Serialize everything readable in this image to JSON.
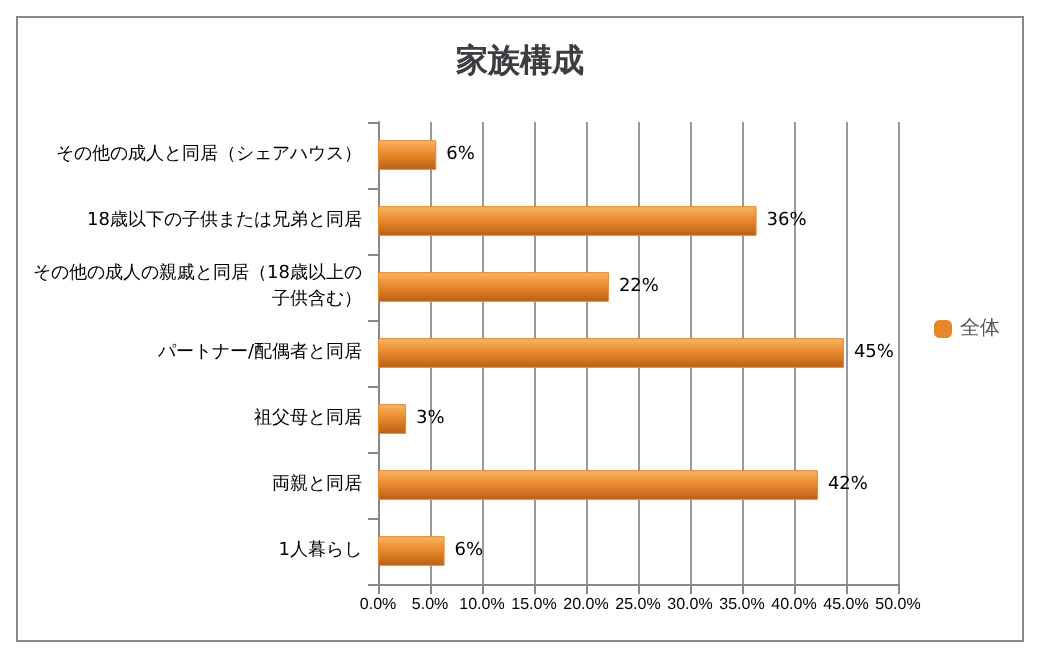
{
  "chart_data": {
    "type": "bar",
    "orientation": "horizontal",
    "title": "家族構成",
    "categories": [
      "その他の成人と同居（シェアハウス）",
      "18歳以下の子供または兄弟と同居",
      "その他の成人の親戚と同居（18歳以上の子供含む）",
      "パートナー/配偶者と同居",
      "祖父母と同居",
      "両親と同居",
      "1人暮らし"
    ],
    "series": [
      {
        "name": "全体",
        "color": "#e8862a",
        "values": [
          5.6,
          36.4,
          22.2,
          44.8,
          2.7,
          42.3,
          6.4
        ],
        "value_labels": [
          "6%",
          "36%",
          "22%",
          "45%",
          "3%",
          "42%",
          "6%"
        ]
      }
    ],
    "xlim": [
      0,
      50
    ],
    "xticks": [
      {
        "value": 0,
        "label": "0.0%"
      },
      {
        "value": 5,
        "label": "5.0%"
      },
      {
        "value": 10,
        "label": "10.0%"
      },
      {
        "value": 15,
        "label": "15.0%"
      },
      {
        "value": 20,
        "label": "20.0%"
      },
      {
        "value": 25,
        "label": "25.0%"
      },
      {
        "value": 30,
        "label": "30.0%"
      },
      {
        "value": 35,
        "label": "35.0%"
      },
      {
        "value": 40,
        "label": "40.0%"
      },
      {
        "value": 45,
        "label": "45.0%"
      },
      {
        "value": 50,
        "label": "50.0%"
      }
    ],
    "grid": "x",
    "legend": "right"
  }
}
